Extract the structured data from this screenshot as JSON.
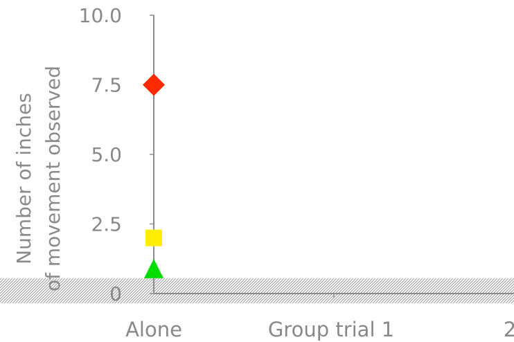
{
  "chart_data": {
    "type": "scatter",
    "categories": [
      "Alone",
      "Group trial 1",
      "2"
    ],
    "ylabel_lines": [
      "Number of inches",
      "of movement observed"
    ],
    "yticks": [
      "0",
      "2.5",
      "5.0",
      "7.5",
      "10.0"
    ],
    "ylim": [
      0,
      10
    ],
    "grid": false,
    "points": [
      {
        "category": "Alone",
        "y": 7.5,
        "marker": "diamond",
        "color": "#ff2a00"
      },
      {
        "category": "Alone",
        "y": 2.0,
        "marker": "square",
        "color": "#ffee00"
      },
      {
        "category": "Alone",
        "y": 0.9,
        "marker": "triangle",
        "color": "#00dd00"
      }
    ],
    "hatch_region": {
      "y_from": 0,
      "y_to": 0.2
    }
  }
}
